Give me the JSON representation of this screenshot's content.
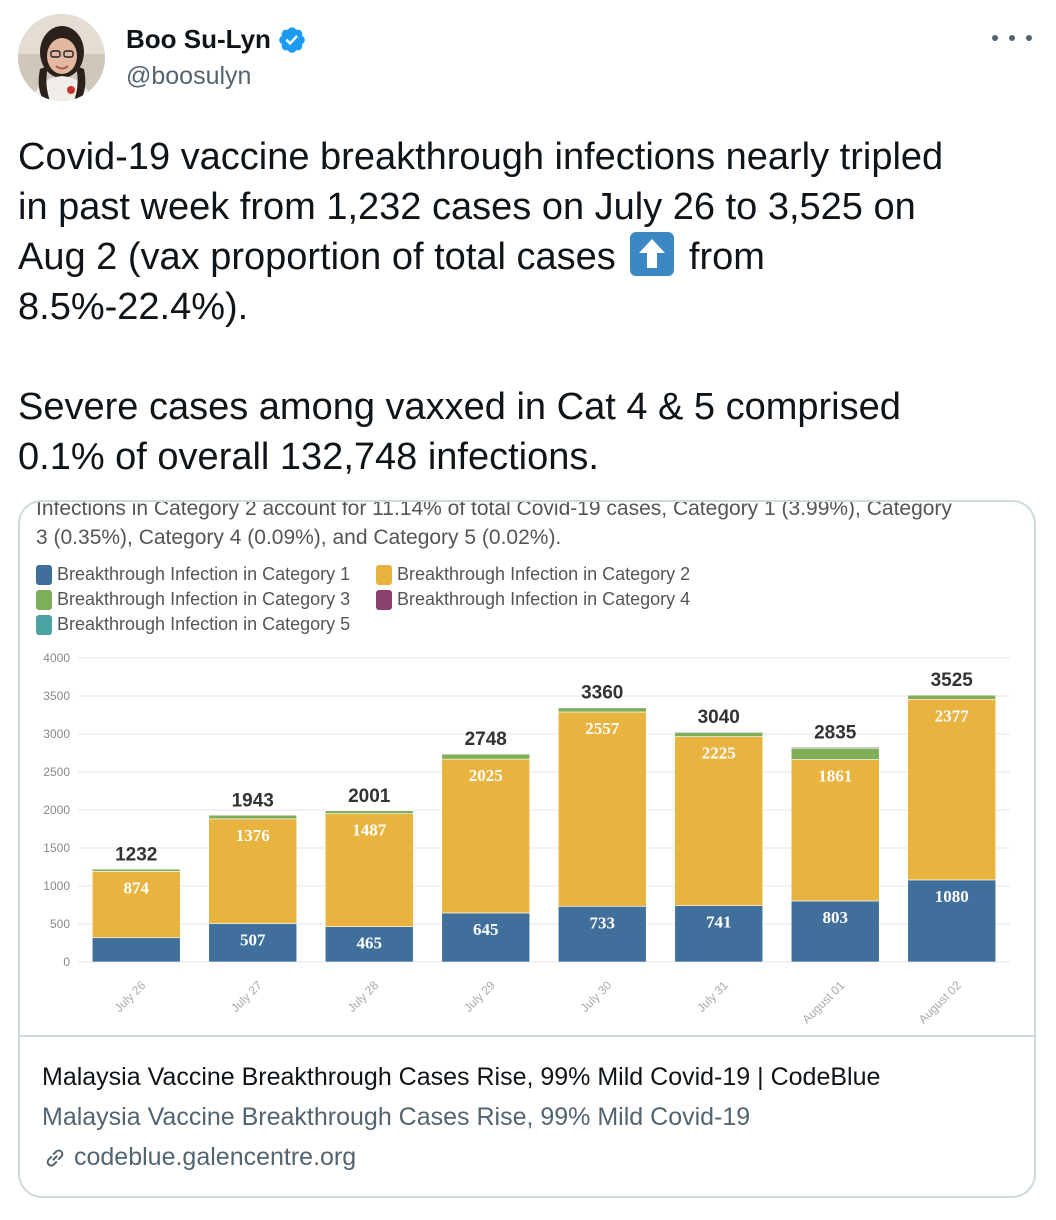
{
  "author": {
    "display_name": "Boo Su-Lyn",
    "handle": "@boosulyn"
  },
  "tweet": {
    "line1": "Covid-19 vaccine breakthrough infections nearly tripled",
    "line2": "in past week from 1,232 cases on July 26 to 3,525 on",
    "line3_a": "Aug 2 (vax proportion of total cases",
    "line3_b": "from",
    "line4": "8.5%-22.4%).",
    "line5": "Severe cases among vaxxed in Cat 4 & 5 comprised",
    "line6": "0.1% of overall 132,748 infections."
  },
  "card": {
    "title": "Malaysia Vaccine Breakthrough Cases Rise, 99% Mild Covid-19 | CodeBlue",
    "subtitle": "Malaysia Vaccine Breakthrough Cases Rise, 99% Mild Covid-19",
    "domain": "codeblue.galencentre.org"
  },
  "chart_data": {
    "type": "bar",
    "stacked": true,
    "description_line1": "Infections in Category 2 account for 11.14% of total Covid-19 cases, Category 1 (3.99%), Category",
    "description_line2": "3 (0.35%), Category 4 (0.09%), and Category 5 (0.02%).",
    "categories": [
      "July 26",
      "July 27",
      "July 28",
      "July 29",
      "July 30",
      "July 31",
      "August 01",
      "August 02"
    ],
    "totals": [
      1232,
      1943,
      2001,
      2748,
      3360,
      3040,
      2835,
      3525
    ],
    "series": [
      {
        "name": "Breakthrough Infection in Category 1",
        "color": "#3f6f9a",
        "values": [
          319,
          507,
          465,
          645,
          733,
          741,
          803,
          1080
        ]
      },
      {
        "name": "Breakthrough Infection in Category 2",
        "color": "#e8b33f",
        "values": [
          874,
          1376,
          1487,
          2025,
          2557,
          2225,
          1861,
          2377
        ]
      },
      {
        "name": "Breakthrough Infection in Category 3",
        "color": "#7fae58",
        "values": [
          30,
          50,
          40,
          65,
          55,
          55,
          150,
          55
        ]
      },
      {
        "name": "Breakthrough Infection in Category 4",
        "color": "#8b3f6b",
        "values": [
          5,
          6,
          5,
          8,
          8,
          10,
          12,
          8
        ]
      },
      {
        "name": "Breakthrough Infection in Category 5",
        "color": "#4aa3a0",
        "values": [
          4,
          4,
          4,
          5,
          7,
          9,
          9,
          5
        ]
      }
    ],
    "labeled_values": [
      {
        "series": 0,
        "values": [
          null,
          507,
          465,
          645,
          733,
          741,
          803,
          1080
        ]
      },
      {
        "series": 1,
        "values": [
          874,
          1376,
          1487,
          2025,
          2557,
          2225,
          1861,
          2377
        ]
      }
    ],
    "yticks": [
      0,
      500,
      1000,
      1500,
      2000,
      2500,
      3000,
      3500,
      4000
    ],
    "ylim": [
      0,
      4000
    ],
    "legend_position": "top-left"
  }
}
